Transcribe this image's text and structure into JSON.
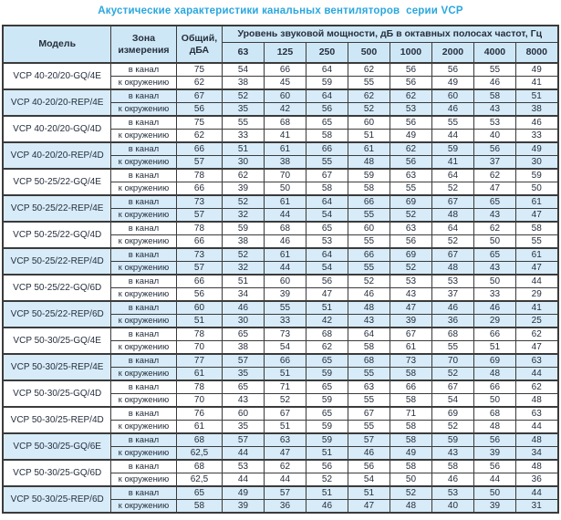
{
  "title": "Акустические характеристики канальных вентиляторов  серии VCP",
  "table": {
    "headers": {
      "model": "Модель",
      "zone": "Зона\nизмерения",
      "total": "Общий,\nдБА",
      "octave_group": "Уровень звуковой мощности, дБ в октавных полосах частот, Гц",
      "frequencies": [
        "63",
        "125",
        "250",
        "500",
        "1000",
        "2000",
        "4000",
        "8000"
      ]
    },
    "colors": {
      "title": "#29a7df",
      "header_bg": "#cee7f6",
      "highlight_row_bg": "#d7ebf8",
      "border": "#3b3b3b"
    },
    "models": [
      {
        "name": "VCP 40-20/20-GQ/4E",
        "highlight": false,
        "rows": [
          {
            "zone": "в канал",
            "values": [
              "75",
              "54",
              "66",
              "64",
              "62",
              "56",
              "56",
              "55",
              "49"
            ]
          },
          {
            "zone": "к окружению",
            "values": [
              "62",
              "38",
              "45",
              "59",
              "55",
              "56",
              "49",
              "46",
              "41"
            ]
          }
        ]
      },
      {
        "name": "VCP 40-20/20-REP/4E",
        "highlight": true,
        "rows": [
          {
            "zone": "в канал",
            "values": [
              "67",
              "52",
              "60",
              "64",
              "62",
              "62",
              "60",
              "58",
              "51"
            ]
          },
          {
            "zone": "к окружению",
            "values": [
              "56",
              "35",
              "42",
              "56",
              "52",
              "53",
              "46",
              "43",
              "38"
            ]
          }
        ]
      },
      {
        "name": "VCP 40-20/20-GQ/4D",
        "highlight": false,
        "rows": [
          {
            "zone": "в канал",
            "values": [
              "75",
              "55",
              "68",
              "65",
              "60",
              "56",
              "55",
              "53",
              "46"
            ]
          },
          {
            "zone": "к окружению",
            "values": [
              "62",
              "33",
              "41",
              "58",
              "51",
              "49",
              "44",
              "40",
              "33"
            ]
          }
        ]
      },
      {
        "name": "VCP 40-20/20-REP/4D",
        "highlight": true,
        "rows": [
          {
            "zone": "в канал",
            "values": [
              "66",
              "51",
              "61",
              "66",
              "61",
              "62",
              "59",
              "56",
              "49"
            ]
          },
          {
            "zone": "к окружению",
            "values": [
              "57",
              "30",
              "38",
              "55",
              "48",
              "56",
              "41",
              "37",
              "30"
            ]
          }
        ]
      },
      {
        "name": "VCP 50-25/22-GQ/4E",
        "highlight": false,
        "rows": [
          {
            "zone": "в канал",
            "values": [
              "78",
              "62",
              "70",
              "67",
              "59",
              "63",
              "64",
              "62",
              "59"
            ]
          },
          {
            "zone": "к окружению",
            "values": [
              "66",
              "39",
              "50",
              "58",
              "58",
              "55",
              "52",
              "47",
              "50"
            ]
          }
        ]
      },
      {
        "name": "VCP 50-25/22-REP/4E",
        "highlight": true,
        "rows": [
          {
            "zone": "в канал",
            "values": [
              "73",
              "52",
              "61",
              "64",
              "66",
              "69",
              "67",
              "65",
              "61"
            ]
          },
          {
            "zone": "к окружению",
            "values": [
              "57",
              "32",
              "44",
              "54",
              "55",
              "52",
              "48",
              "43",
              "47"
            ]
          }
        ]
      },
      {
        "name": "VCP 50-25/22-GQ/4D",
        "highlight": false,
        "rows": [
          {
            "zone": "в канал",
            "values": [
              "78",
              "59",
              "68",
              "65",
              "60",
              "63",
              "64",
              "62",
              "58"
            ]
          },
          {
            "zone": "к окружению",
            "values": [
              "66",
              "38",
              "46",
              "53",
              "55",
              "56",
              "52",
              "50",
              "55"
            ]
          }
        ]
      },
      {
        "name": "VCP 50-25/22-REP/4D",
        "highlight": true,
        "rows": [
          {
            "zone": "в канал",
            "values": [
              "73",
              "52",
              "61",
              "64",
              "66",
              "69",
              "67",
              "65",
              "61"
            ]
          },
          {
            "zone": "к окружению",
            "values": [
              "57",
              "32",
              "44",
              "54",
              "55",
              "52",
              "48",
              "43",
              "47"
            ]
          }
        ]
      },
      {
        "name": "VCP 50-25/22-GQ/6D",
        "highlight": false,
        "rows": [
          {
            "zone": "в канал",
            "values": [
              "66",
              "51",
              "60",
              "56",
              "52",
              "53",
              "53",
              "50",
              "44"
            ]
          },
          {
            "zone": "к окружению",
            "values": [
              "56",
              "34",
              "39",
              "47",
              "46",
              "43",
              "37",
              "33",
              "29"
            ]
          }
        ]
      },
      {
        "name": "VCP 50-25/22-REP/6D",
        "highlight": true,
        "rows": [
          {
            "zone": "в канал",
            "values": [
              "60",
              "46",
              "55",
              "51",
              "48",
              "47",
              "46",
              "46",
              "41"
            ]
          },
          {
            "zone": "к окружению",
            "values": [
              "51",
              "30",
              "33",
              "42",
              "43",
              "39",
              "36",
              "29",
              "25"
            ]
          }
        ]
      },
      {
        "name": "VCP 50-30/25-GQ/4E",
        "highlight": false,
        "rows": [
          {
            "zone": "в канал",
            "values": [
              "78",
              "65",
              "73",
              "68",
              "64",
              "67",
              "68",
              "66",
              "62"
            ]
          },
          {
            "zone": "к окружению",
            "values": [
              "70",
              "38",
              "54",
              "62",
              "58",
              "61",
              "55",
              "51",
              "47"
            ]
          }
        ]
      },
      {
        "name": "VCP 50-30/25-REP/4E",
        "highlight": true,
        "rows": [
          {
            "zone": "в канал",
            "values": [
              "77",
              "57",
              "66",
              "65",
              "68",
              "73",
              "70",
              "69",
              "63"
            ]
          },
          {
            "zone": "к окружению",
            "values": [
              "61",
              "35",
              "51",
              "59",
              "55",
              "58",
              "52",
              "48",
              "44"
            ]
          }
        ]
      },
      {
        "name": "VCP 50-30/25-GQ/4D",
        "highlight": false,
        "rows": [
          {
            "zone": "в канал",
            "values": [
              "78",
              "65",
              "71",
              "65",
              "63",
              "66",
              "67",
              "66",
              "62"
            ]
          },
          {
            "zone": "к окружению",
            "values": [
              "70",
              "43",
              "52",
              "59",
              "55",
              "58",
              "54",
              "50",
              "48"
            ]
          }
        ]
      },
      {
        "name": "VCP 50-30/25-REP/4D",
        "highlight": false,
        "rows": [
          {
            "zone": "в канал",
            "values": [
              "76",
              "60",
              "67",
              "65",
              "67",
              "71",
              "69",
              "68",
              "63"
            ]
          },
          {
            "zone": "к окружению",
            "values": [
              "61",
              "35",
              "51",
              "59",
              "55",
              "58",
              "52",
              "48",
              "44"
            ]
          }
        ]
      },
      {
        "name": "VCP 50-30/25-GQ/6E",
        "highlight": true,
        "rows": [
          {
            "zone": "в канал",
            "values": [
              "68",
              "57",
              "63",
              "59",
              "57",
              "58",
              "59",
              "56",
              "48"
            ]
          },
          {
            "zone": "к окружению",
            "values": [
              "62,5",
              "44",
              "47",
              "51",
              "46",
              "49",
              "43",
              "39",
              "34"
            ]
          }
        ]
      },
      {
        "name": "VCP 50-30/25-GQ/6D",
        "highlight": false,
        "rows": [
          {
            "zone": "в канал",
            "values": [
              "68",
              "53",
              "62",
              "56",
              "56",
              "58",
              "58",
              "56",
              "48"
            ]
          },
          {
            "zone": "к окружению",
            "values": [
              "62,5",
              "44",
              "44",
              "52",
              "54",
              "50",
              "46",
              "44",
              "36"
            ]
          }
        ]
      },
      {
        "name": "VCP 50-30/25-REP/6D",
        "highlight": true,
        "rows": [
          {
            "zone": "в канал",
            "values": [
              "65",
              "49",
              "57",
              "51",
              "51",
              "52",
              "53",
              "50",
              "44"
            ]
          },
          {
            "zone": "к окружению",
            "values": [
              "58",
              "39",
              "36",
              "46",
              "47",
              "48",
              "40",
              "39",
              "31"
            ]
          }
        ]
      }
    ]
  }
}
